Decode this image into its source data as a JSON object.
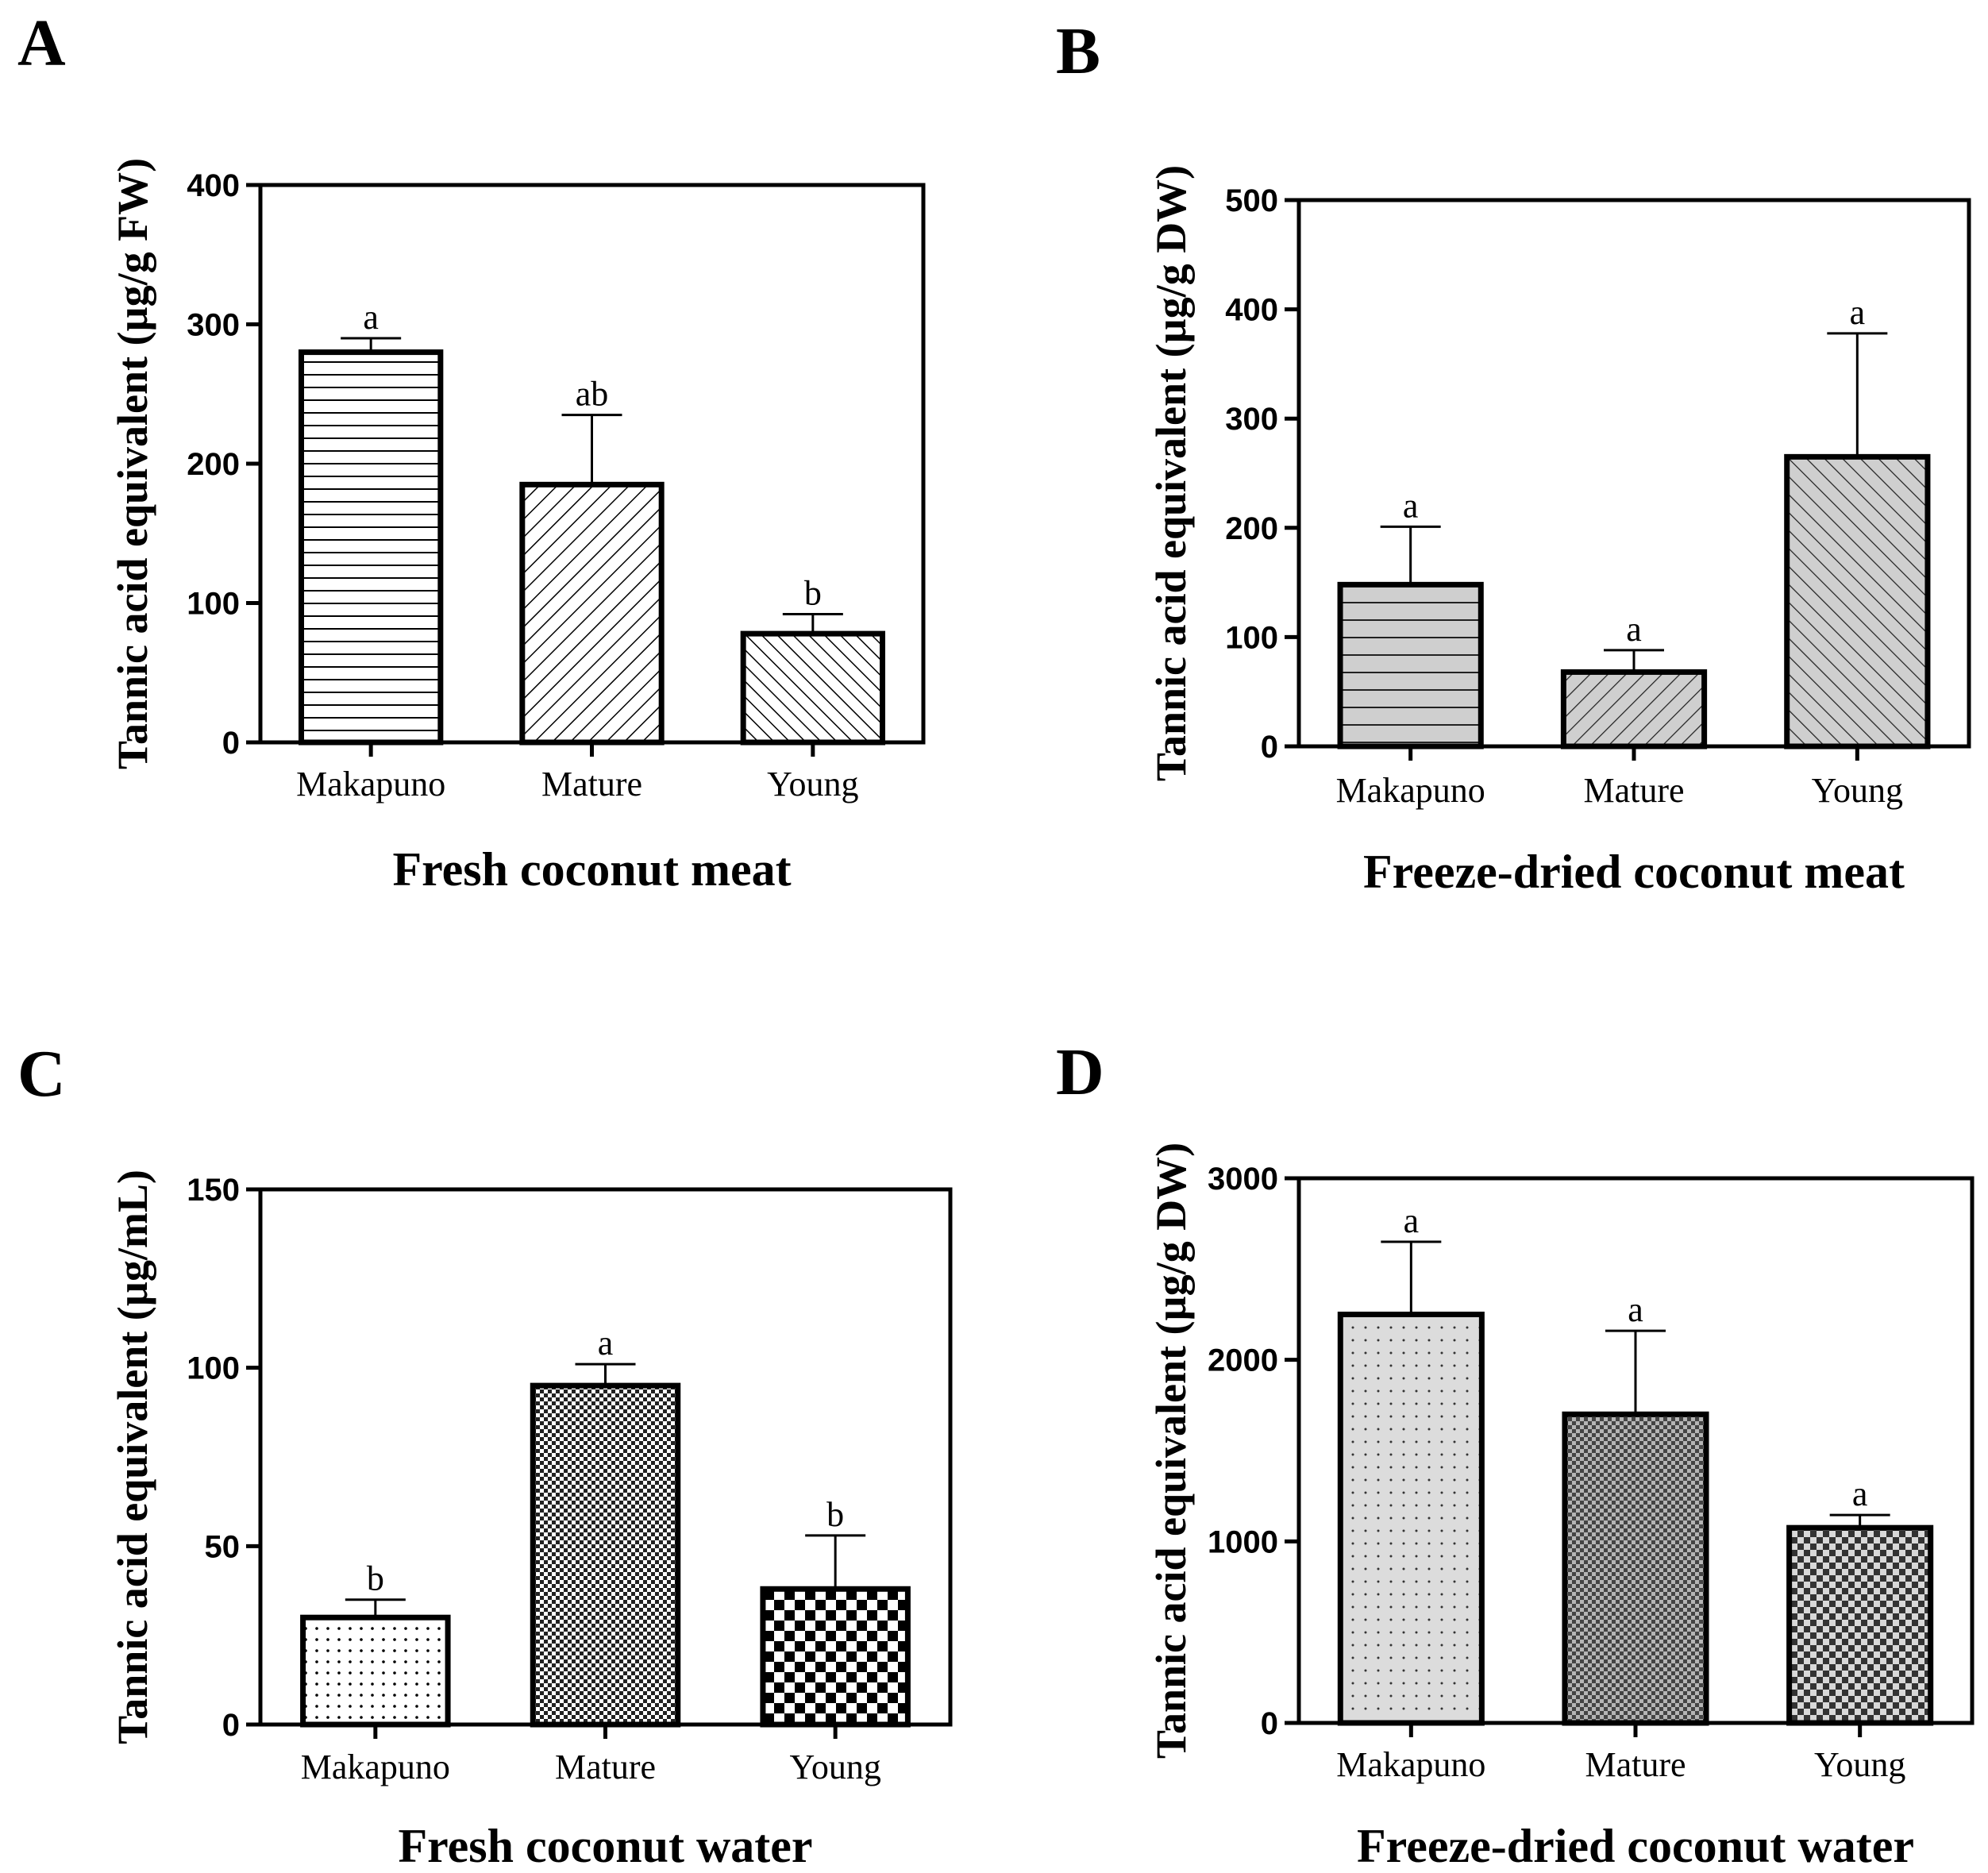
{
  "chart_data": [
    {
      "panel": "A",
      "type": "bar",
      "title": "",
      "xlabel": "Fresh coconut meat",
      "ylabel": "Tannic acid equivalent (µg/g FW)",
      "ylim": [
        0,
        400
      ],
      "yticks": [
        0,
        100,
        200,
        300,
        400
      ],
      "categories": [
        "Makapuno",
        "Mature",
        "Young"
      ],
      "values": [
        280,
        185,
        78
      ],
      "errors": [
        10,
        50,
        14
      ],
      "significance": [
        "a",
        "ab",
        "b"
      ],
      "patterns": [
        "horizontal",
        "diagonal",
        "diagonal-back"
      ]
    },
    {
      "panel": "B",
      "type": "bar",
      "title": "",
      "xlabel": "Freeze-dried coconut meat",
      "ylabel": "Tannic acid equivalent (µg/g DW)",
      "ylim": [
        0,
        500
      ],
      "yticks": [
        0,
        100,
        200,
        300,
        400,
        500
      ],
      "categories": [
        "Makapuno",
        "Mature",
        "Young"
      ],
      "values": [
        148,
        68,
        265
      ],
      "errors": [
        53,
        20,
        113
      ],
      "significance": [
        "a",
        "a",
        "a"
      ],
      "patterns": [
        "horizontal-gray",
        "diagonal-gray",
        "diagonal-back-gray"
      ]
    },
    {
      "panel": "C",
      "type": "bar",
      "title": "",
      "xlabel": "Fresh coconut water",
      "ylabel": "Tannic acid equivalent (µg/mL)",
      "ylim": [
        0,
        150
      ],
      "yticks": [
        0,
        50,
        100,
        150
      ],
      "categories": [
        "Makapuno",
        "Mature",
        "Young"
      ],
      "values": [
        30,
        95,
        38
      ],
      "errors": [
        5,
        6,
        15
      ],
      "significance": [
        "b",
        "a",
        "b"
      ],
      "patterns": [
        "dots",
        "fine-check",
        "coarse-check"
      ]
    },
    {
      "panel": "D",
      "type": "bar",
      "title": "",
      "xlabel": "Freeze-dried coconut water",
      "ylabel": "Tannic acid equivalent (µg/g DW)",
      "ylim": [
        0,
        3000
      ],
      "yticks": [
        0,
        1000,
        2000,
        3000
      ],
      "categories": [
        "Makapuno",
        "Mature",
        "Young"
      ],
      "values": [
        2250,
        1700,
        1075
      ],
      "errors": [
        400,
        460,
        70
      ],
      "significance": [
        "a",
        "a",
        "a"
      ],
      "patterns": [
        "dots-gray",
        "fine-check-gray",
        "coarse-check-gray"
      ]
    }
  ]
}
